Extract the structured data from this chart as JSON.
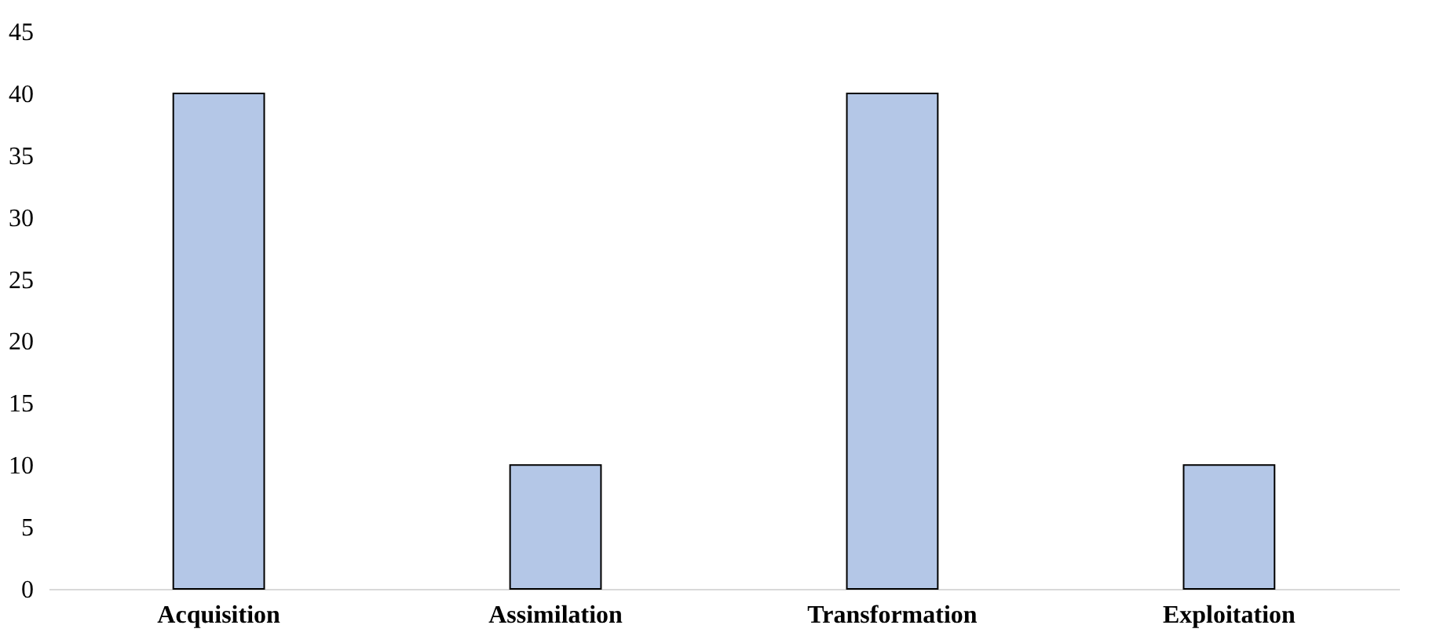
{
  "chart_data": {
    "type": "bar",
    "categories": [
      "Acquisition",
      "Assimilation",
      "Transformation",
      "Exploitation"
    ],
    "values": [
      40,
      10,
      40,
      10
    ],
    "color": "#b4c7e7",
    "ylim": [
      0,
      45
    ],
    "yticks": [
      0,
      5,
      10,
      15,
      20,
      25,
      30,
      35,
      40,
      45
    ],
    "grid": false
  }
}
